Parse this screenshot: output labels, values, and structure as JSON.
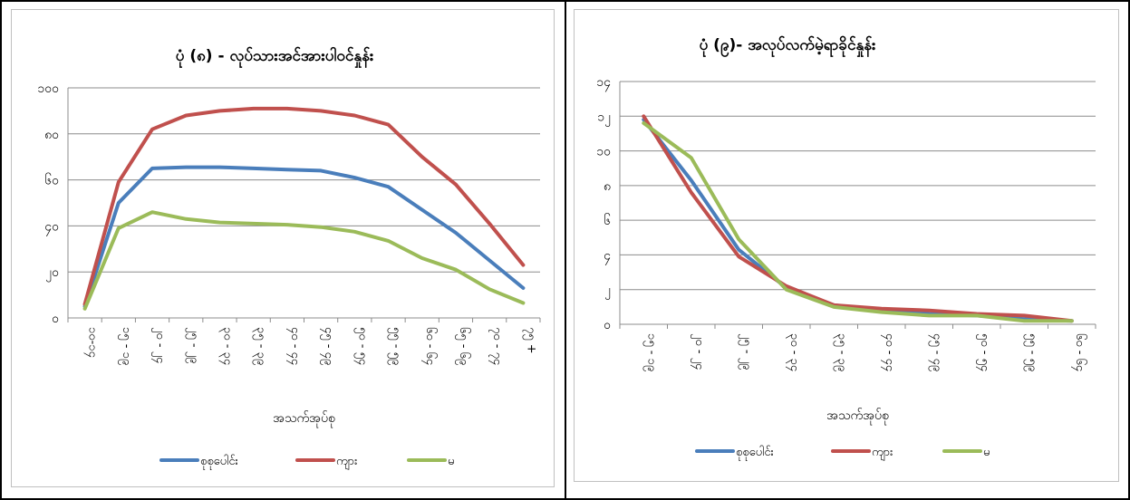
{
  "chart_data": [
    {
      "type": "line",
      "title": "ပုံ (၈) - လုပ်သားအင်အားပါဝင်နှုန်း",
      "xlabel": "အသက်အုပ်စု",
      "ylabel": "",
      "ylim": [
        0,
        100
      ],
      "yticks": [
        "၀",
        "၂၀",
        "၄၀",
        "၆၀",
        "၈၀",
        "၁၀၀"
      ],
      "categories": [
        "၁၀-၁၄",
        "၁၅ - ၁၉",
        "၂၀ - ၂၄",
        "၂၅ - ၂၉",
        "၃၀ - ၃၄",
        "၃၅ - ၃၉",
        "၄၀ - ၄၄",
        "၄၅ - ၄၉",
        "၅၀ - ၅၄",
        "၅၅ - ၅၉",
        "၆၀ - ၆၄",
        "၆၅ - ၆၉",
        "၇၀ - ၇၄",
        "၇၅ +"
      ],
      "grid": true,
      "legend": "bottom",
      "series": [
        {
          "name": "စုစုပေါင်း",
          "color": "#4a7ebb",
          "values": [
            5,
            50,
            65,
            65.5,
            65.5,
            65,
            64.5,
            64,
            61,
            57,
            47,
            37,
            25,
            13
          ]
        },
        {
          "name": "ကျား",
          "color": "#c0504d",
          "values": [
            6,
            59,
            82,
            88,
            90,
            91,
            91,
            90,
            88,
            84,
            70,
            58,
            41,
            23
          ]
        },
        {
          "name": "မ",
          "color": "#9bbb59",
          "values": [
            4,
            39,
            46,
            43,
            41.5,
            41,
            40.5,
            39.5,
            37.5,
            33.5,
            26,
            21,
            12.5,
            6.5
          ]
        }
      ]
    },
    {
      "type": "line",
      "title": "ပုံ (၉)- အလုပ်လက်မဲ့ရာခိုင်နှုန်း",
      "xlabel": "အသက်အုပ်စု",
      "ylabel": "",
      "ylim": [
        0,
        14
      ],
      "yticks": [
        "၀",
        "၂",
        "၄",
        "၆",
        "၈",
        "၁၀",
        "၁၂",
        "၁၄"
      ],
      "categories": [
        "၁၅ - ၁၉",
        "၂၀ - ၂၄",
        "၂၅ - ၂၉",
        "၃၀ - ၃၄",
        "၃၅ - ၃၉",
        "၄၀ - ၄၄",
        "၄၅ - ၄၉",
        "၅၀ - ၅၄",
        "၅၅ - ၅၉",
        "၆၀ - ၆၄"
      ],
      "grid": true,
      "legend": "bottom",
      "series": [
        {
          "name": "စုစုပေါင်း",
          "color": "#4a7ebb",
          "values": [
            11.8,
            8.3,
            4.3,
            2.1,
            1.1,
            0.8,
            0.6,
            0.5,
            0.3,
            0.2
          ]
        },
        {
          "name": "ကျား",
          "color": "#c0504d",
          "values": [
            12.0,
            7.6,
            3.9,
            2.2,
            1.1,
            0.9,
            0.8,
            0.6,
            0.5,
            0.2
          ]
        },
        {
          "name": "မ",
          "color": "#9bbb59",
          "values": [
            11.6,
            9.6,
            4.9,
            2.0,
            1.0,
            0.7,
            0.5,
            0.5,
            0.2,
            0.2
          ]
        }
      ]
    }
  ]
}
